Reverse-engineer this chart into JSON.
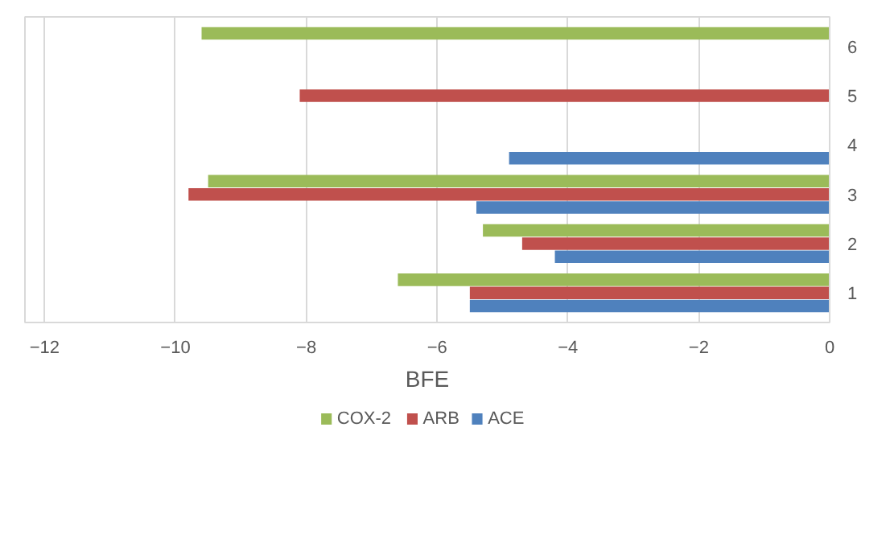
{
  "chart_data": {
    "type": "bar",
    "orientation": "horizontal",
    "xlabel": "BFE",
    "categories": [
      "6",
      "5",
      "4",
      "3",
      "2",
      "1"
    ],
    "series": [
      {
        "name": "COX-2",
        "color": "#9bbb59",
        "values": [
          -9.6,
          null,
          null,
          -9.5,
          -5.3,
          -6.6
        ]
      },
      {
        "name": "ARB",
        "color": "#c0504d",
        "values": [
          null,
          -8.1,
          null,
          -9.8,
          -4.7,
          -5.5
        ]
      },
      {
        "name": "ACE",
        "color": "#4f81bd",
        "values": [
          null,
          null,
          -4.9,
          -5.4,
          -4.2,
          -5.5
        ]
      }
    ],
    "xlim": [
      -12.3,
      0
    ],
    "xticks": [
      -12,
      -10,
      -8,
      -6,
      -4,
      -2,
      0
    ],
    "grid": "x",
    "legend": "bottom"
  }
}
